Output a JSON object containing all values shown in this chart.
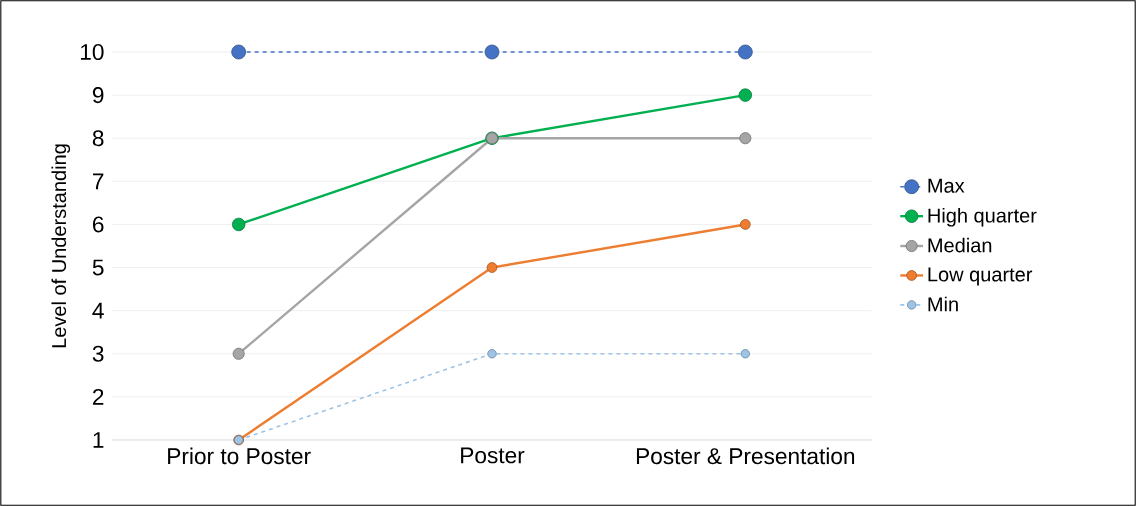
{
  "chart_data": {
    "type": "line",
    "ylabel": "Level of Understanding",
    "categories": [
      "Prior to Poster",
      "Poster",
      "Poster & Presentation"
    ],
    "series": [
      {
        "name": "Max",
        "color": "#4472c4",
        "values": [
          10,
          10,
          10
        ],
        "line_style": "dashed"
      },
      {
        "name": "High quarter",
        "color": "#00b050",
        "values": [
          6,
          8,
          9
        ],
        "line_style": "solid"
      },
      {
        "name": "Median",
        "color": "#a5a5a5",
        "values": [
          3,
          8,
          8
        ],
        "line_style": "solid"
      },
      {
        "name": "Low quarter",
        "color": "#ed7d31",
        "values": [
          1,
          5,
          6
        ],
        "line_style": "solid"
      },
      {
        "name": "Min",
        "color": "#9dc3e6",
        "values": [
          1,
          3,
          3
        ],
        "line_style": "dashed"
      }
    ],
    "ylim": [
      1,
      10
    ],
    "yticks": [
      1,
      2,
      3,
      4,
      5,
      6,
      7,
      8,
      9,
      10
    ],
    "grid": "y",
    "legend": "right",
    "marker": "circle"
  }
}
